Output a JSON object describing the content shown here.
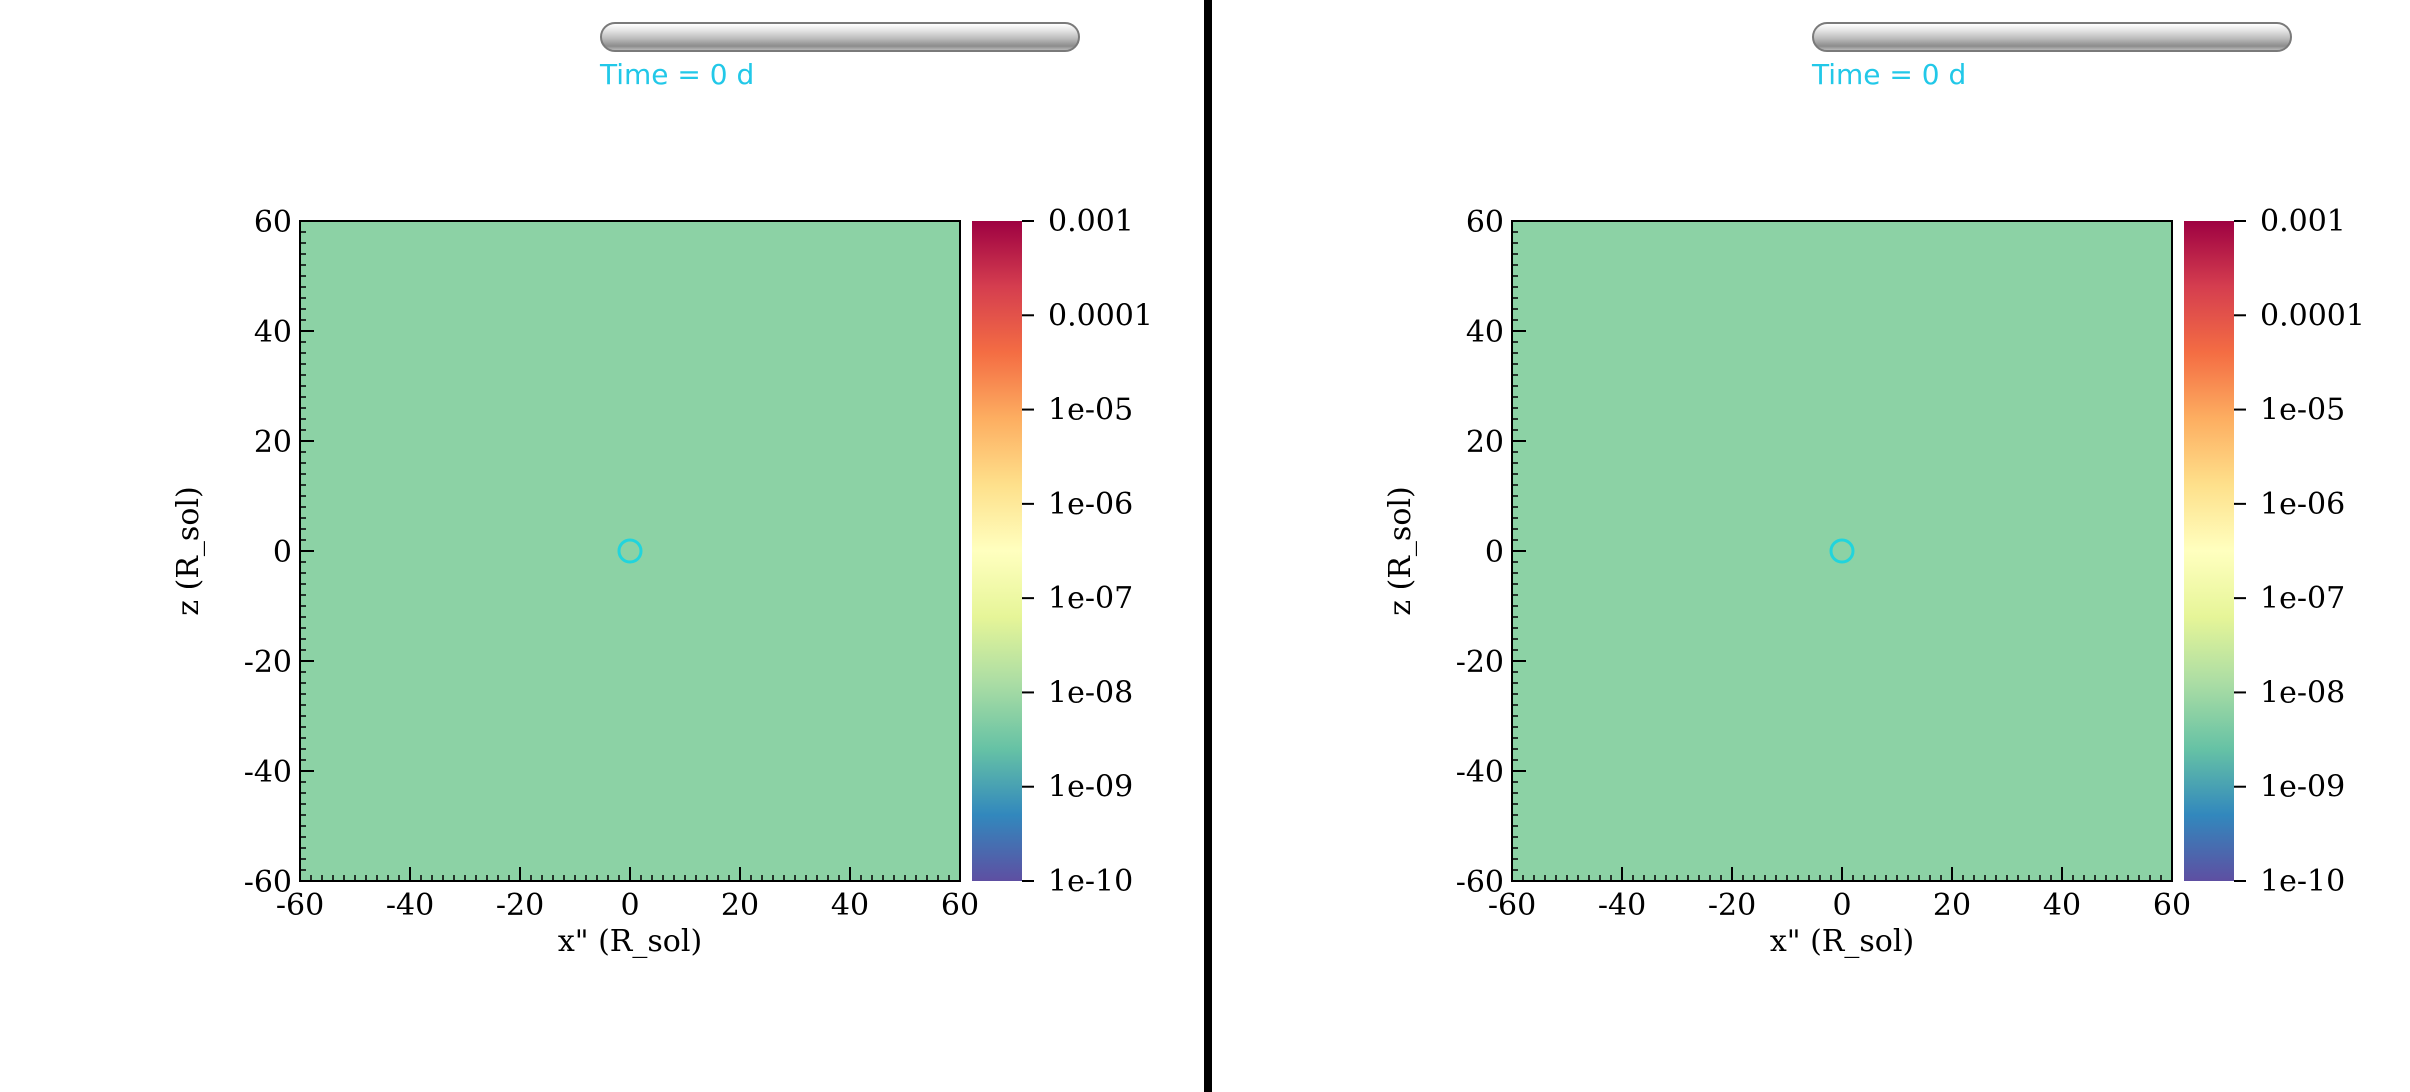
{
  "time_slider": {
    "label": "Time = 0 d"
  },
  "chart_data": [
    {
      "type": "heatmap",
      "title": "",
      "xlabel": "x\" (R_sol)",
      "ylabel": "z (R_sol)",
      "xlim": [
        -60,
        60
      ],
      "ylim": [
        -60,
        60
      ],
      "x_ticks": [
        "-60",
        "-40",
        "-20",
        "0",
        "20",
        "40",
        "60"
      ],
      "y_ticks": [
        "60",
        "40",
        "20",
        "0",
        "-20",
        "-40",
        "-60"
      ],
      "field_value": 1e-08,
      "field_color": "#8cd2a5",
      "marker": {
        "shape": "circle",
        "x": 0,
        "z": 0,
        "color": "#22d4dc"
      },
      "colorbar": {
        "scale": "log",
        "range": [
          1e-10,
          0.001
        ],
        "tick_labels": [
          "0.001",
          "0.0001",
          "1e-05",
          "1e-06",
          "1e-07",
          "1e-08",
          "1e-09",
          "1e-10"
        ],
        "colormap_stops": [
          "#9e0142",
          "#d53e4f",
          "#f46d43",
          "#fdae61",
          "#fee08b",
          "#ffffbf",
          "#e6f598",
          "#abdda4",
          "#66c2a5",
          "#3288bd",
          "#5e4fa2"
        ]
      }
    },
    {
      "type": "heatmap",
      "title": "",
      "xlabel": "x\" (R_sol)",
      "ylabel": "z (R_sol)",
      "xlim": [
        -60,
        60
      ],
      "ylim": [
        -60,
        60
      ],
      "x_ticks": [
        "-60",
        "-40",
        "-20",
        "0",
        "20",
        "40",
        "60"
      ],
      "y_ticks": [
        "60",
        "40",
        "20",
        "0",
        "-20",
        "-40",
        "-60"
      ],
      "field_value": 1e-08,
      "field_color": "#8cd2a5",
      "marker": {
        "shape": "circle",
        "x": 0,
        "z": 0,
        "color": "#22d4dc"
      },
      "colorbar": {
        "scale": "log",
        "range": [
          1e-10,
          0.001
        ],
        "tick_labels": [
          "0.001",
          "0.0001",
          "1e-05",
          "1e-06",
          "1e-07",
          "1e-08",
          "1e-09",
          "1e-10"
        ],
        "colormap_stops": [
          "#9e0142",
          "#d53e4f",
          "#f46d43",
          "#fdae61",
          "#fee08b",
          "#ffffbf",
          "#e6f598",
          "#abdda4",
          "#66c2a5",
          "#3288bd",
          "#5e4fa2"
        ]
      }
    }
  ]
}
